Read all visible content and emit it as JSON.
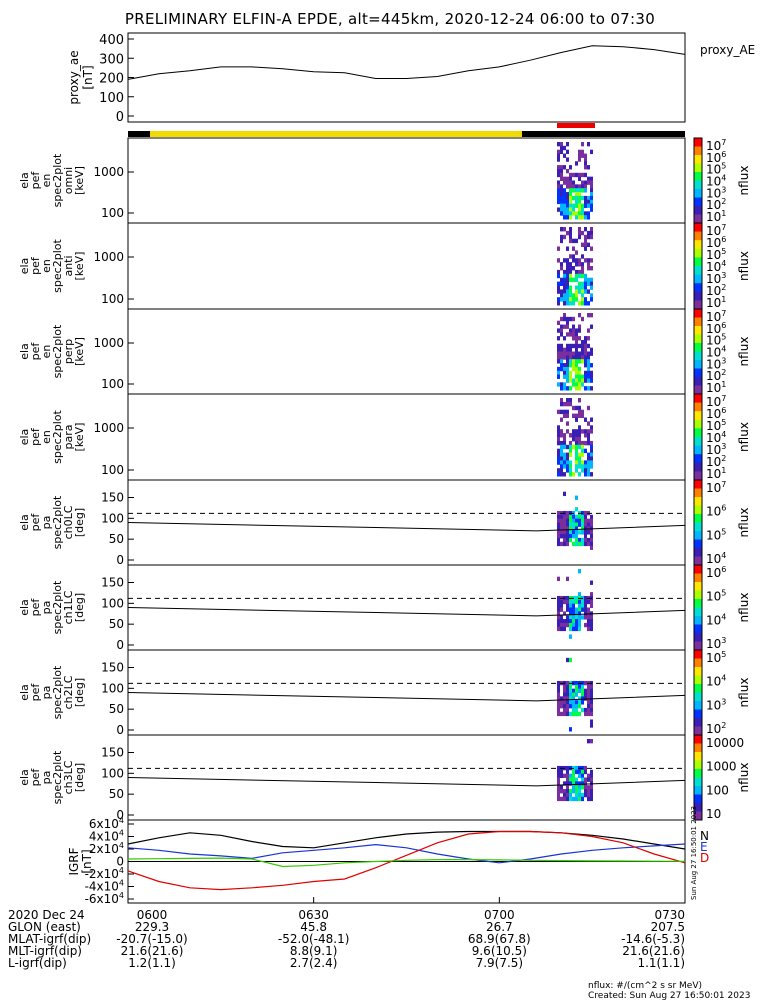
{
  "title": "PRELIMINARY ELFIN-A EPDE, alt=445km, 2020-12-24 06:00 to 07:30",
  "footer": {
    "units_note": "nflux: #/(cm^2 s sr MeV)",
    "created": "Created: Sun Aug 27 16:50:01 2023",
    "side_stamp": "Sun Aug 27 16:50:01 2023"
  },
  "colors": {
    "spin_yellow": "#f2dc00",
    "spin_black": "#000000",
    "science_red": "#ee0000",
    "igrf_n": "#000000",
    "igrf_e": "#1a33d6",
    "igrf_d": "#e00000",
    "igrf_green": "#33cc00",
    "colorbar": [
      "#ffffff",
      "#7b2f9e",
      "#3a1fb4",
      "#0033ff",
      "#00b7ff",
      "#00e0d0",
      "#00ff44",
      "#aaff00",
      "#ffe600",
      "#ff7f00",
      "#ff0000"
    ]
  },
  "chart_data": [
    {
      "type": "line",
      "name": "proxy_ae",
      "ylabel": "proxy_ae\n[nT]",
      "legend": "proxy_AE",
      "ylim": [
        0,
        400
      ],
      "yticks": [
        "400",
        "300",
        "200",
        "100",
        "0"
      ],
      "x_minutes": [
        0,
        5,
        10,
        15,
        20,
        25,
        30,
        35,
        40,
        45,
        50,
        55,
        60,
        65,
        70,
        75,
        80,
        85,
        90
      ],
      "values": [
        190,
        220,
        235,
        255,
        255,
        245,
        230,
        225,
        195,
        195,
        205,
        235,
        255,
        290,
        330,
        365,
        360,
        345,
        320
      ]
    },
    {
      "type": "heatmap",
      "name": "ela_pef_en_spec2plot_omni",
      "ylabel": "ela\npef\nen\nspec2plot\nomni\n[keV]",
      "yscale": "log",
      "yticks": [
        "1000",
        "100"
      ],
      "colorbar": {
        "label": "nflux",
        "ticks": [
          "10^7",
          "10^6",
          "10^5",
          "10^4",
          "10^3",
          "10^2",
          "10^1"
        ]
      }
    },
    {
      "type": "heatmap",
      "name": "ela_pef_en_spec2plot_anti",
      "ylabel": "ela\npef\nen\nspec2plot\nanti\n[keV]",
      "yscale": "log",
      "yticks": [
        "1000",
        "100"
      ],
      "colorbar": {
        "label": "nflux",
        "ticks": [
          "10^7",
          "10^6",
          "10^5",
          "10^4",
          "10^3",
          "10^2",
          "10^1"
        ]
      }
    },
    {
      "type": "heatmap",
      "name": "ela_pef_en_spec2plot_perp",
      "ylabel": "ela\npef\nen\nspec2plot\nperp\n[keV]",
      "yscale": "log",
      "yticks": [
        "1000",
        "100"
      ],
      "colorbar": {
        "label": "nflux",
        "ticks": [
          "10^7",
          "10^6",
          "10^5",
          "10^4",
          "10^3",
          "10^2",
          "10^1"
        ]
      }
    },
    {
      "type": "heatmap",
      "name": "ela_pef_en_spec2plot_para",
      "ylabel": "ela\npef\nen\nspec2plot\npara\n[keV]",
      "yscale": "log",
      "yticks": [
        "1000",
        "100"
      ],
      "colorbar": {
        "label": "nflux",
        "ticks": [
          "10^7",
          "10^6",
          "10^5",
          "10^4",
          "10^3",
          "10^2",
          "10^1"
        ]
      }
    },
    {
      "type": "heatmap",
      "name": "ela_pef_pa_spec2plot_ch0LC",
      "ylabel": "ela\npef\npa\nspec2plot\nch0LC\n[deg]",
      "ylim": [
        0,
        180
      ],
      "yticks": [
        "150",
        "100",
        "50",
        "0"
      ],
      "colorbar": {
        "label": "nflux",
        "ticks": [
          "10^7",
          "10^6",
          "10^5",
          "10^4"
        ]
      }
    },
    {
      "type": "heatmap",
      "name": "ela_pef_pa_spec2plot_ch1LC",
      "ylabel": "ela\npef\npa\nspec2plot\nch1LC\n[deg]",
      "ylim": [
        0,
        180
      ],
      "yticks": [
        "150",
        "100",
        "50",
        "0"
      ],
      "colorbar": {
        "label": "nflux",
        "ticks": [
          "10^6",
          "10^5",
          "10^4",
          "10^3"
        ]
      }
    },
    {
      "type": "heatmap",
      "name": "ela_pef_pa_spec2plot_ch2LC",
      "ylabel": "ela\npef\npa\nspec2plot\nch2LC\n[deg]",
      "ylim": [
        0,
        180
      ],
      "yticks": [
        "150",
        "100",
        "50",
        "0"
      ],
      "colorbar": {
        "label": "nflux",
        "ticks": [
          "10^5",
          "10^4",
          "10^3",
          "10^2"
        ]
      }
    },
    {
      "type": "heatmap",
      "name": "ela_pef_pa_spec2plot_ch3LC",
      "ylabel": "ela\npef\npa\nspec2plot\nch3LC\n[deg]",
      "ylim": [
        0,
        180
      ],
      "yticks": [
        "150",
        "100",
        "50",
        "0"
      ],
      "colorbar": {
        "label": "nflux",
        "ticks": [
          "10000",
          "1000",
          "100",
          "10"
        ]
      }
    },
    {
      "type": "line",
      "name": "IGRF",
      "ylabel": "IGRF\n[nT]",
      "ylim": [
        -60000,
        60000
      ],
      "yticks": [
        "6x10^4",
        "4x10^4",
        "2x10^4",
        "0",
        "-2x10^4",
        "-4x10^4",
        "-6x10^4"
      ],
      "legend": [
        "N",
        "E",
        "D"
      ],
      "x_minutes": [
        0,
        5,
        10,
        15,
        20,
        25,
        30,
        35,
        40,
        45,
        50,
        55,
        60,
        65,
        70,
        75,
        80,
        85,
        90
      ],
      "series": [
        {
          "name": "N",
          "values": [
            28000,
            38000,
            46000,
            42000,
            32000,
            24000,
            22000,
            30000,
            38000,
            44000,
            47000,
            48000,
            48000,
            48000,
            46000,
            42000,
            36000,
            28000,
            20000
          ]
        },
        {
          "name": "E",
          "values": [
            22000,
            18000,
            12000,
            9000,
            5000,
            14000,
            18000,
            22000,
            27000,
            22000,
            12000,
            4000,
            -2000,
            4000,
            12000,
            18000,
            22000,
            25000,
            28000
          ]
        },
        {
          "name": "D",
          "values": [
            -15000,
            -32000,
            -42000,
            -45000,
            -42000,
            -38000,
            -32000,
            -28000,
            -10000,
            10000,
            30000,
            44000,
            48000,
            48000,
            46000,
            40000,
            30000,
            12000,
            -2000
          ]
        },
        {
          "name": "",
          "values": [
            4000,
            4500,
            5000,
            5500,
            4000,
            -8000,
            -6000,
            -2000,
            0,
            2000,
            3000,
            3000,
            2500,
            2000,
            1500,
            1000,
            800,
            500,
            300
          ]
        }
      ]
    }
  ],
  "xaxis": {
    "rows": [
      {
        "label": "2020 Dec 24",
        "values": [
          "0600",
          "0630",
          "0700",
          "0730"
        ]
      },
      {
        "label": "GLON (east)",
        "values": [
          "229.3",
          "45.8",
          "26.7",
          "207.5"
        ]
      },
      {
        "label": "MLAT-igrf(dip)",
        "values": [
          "-20.7(-15.0)",
          "-52.0(-48.1)",
          "68.9(67.8)",
          "-14.6(-5.3)"
        ]
      },
      {
        "label": "MLT-igrf(dip)",
        "values": [
          "21.6(21.6)",
          "8.8(9.1)",
          "9.6(10.5)",
          "21.6(21.6)"
        ]
      },
      {
        "label": "L-igrf(dip)",
        "values": [
          "1.2(1.1)",
          "2.7(2.4)",
          "7.9(7.5)",
          "1.1(1.1)"
        ]
      }
    ]
  }
}
